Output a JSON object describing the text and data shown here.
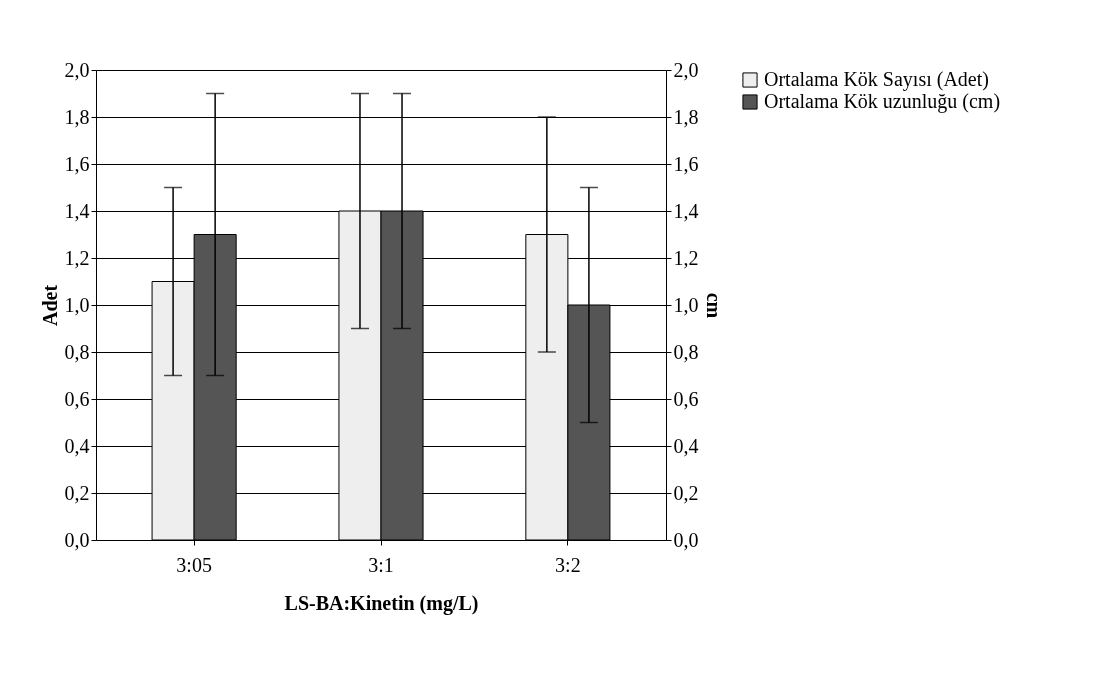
{
  "chart_data": {
    "type": "bar",
    "xlabel": "LS-BA:Kinetin (mg/L)",
    "ylabel": "Adet",
    "y2label": "cm",
    "categories": [
      "3:05",
      "3:1",
      "3:2"
    ],
    "series": [
      {
        "name": "Ortalama Kök Sayısı (Adet)",
        "color": "#eeeeee",
        "values": [
          1.1,
          1.4,
          1.3
        ],
        "errors": [
          [
            0.7,
            1.5
          ],
          [
            0.9,
            1.9
          ],
          [
            0.8,
            1.8
          ]
        ]
      },
      {
        "name": "Ortalama Kök uzunluğu (cm)",
        "color": "#555555",
        "axis": "y2",
        "values": [
          1.3,
          1.4,
          1.0
        ],
        "errors": [
          [
            0.7,
            1.9
          ],
          [
            0.9,
            1.9
          ],
          [
            0.5,
            1.5
          ]
        ]
      }
    ],
    "ylim": [
      0,
      2
    ],
    "yticks": [
      {
        "value": 0,
        "label": "0,0"
      },
      {
        "value": 0.2,
        "label": "0,2"
      },
      {
        "value": 0.4,
        "label": "0,4"
      },
      {
        "value": 0.6,
        "label": "0,6"
      },
      {
        "value": 0.8,
        "label": "0,8"
      },
      {
        "value": 1.0,
        "label": "1,0"
      },
      {
        "value": 1.2,
        "label": "1,2"
      },
      {
        "value": 1.4,
        "label": "1,4"
      },
      {
        "value": 1.6,
        "label": "1,6"
      },
      {
        "value": 1.8,
        "label": "1,8"
      },
      {
        "value": 2.0,
        "label": "2,0"
      }
    ],
    "y2lim": [
      0,
      2
    ],
    "y2ticks": [
      {
        "value": 0,
        "label": "0,0"
      },
      {
        "value": 0.2,
        "label": "0,2"
      },
      {
        "value": 0.4,
        "label": "0,4"
      },
      {
        "value": 0.6,
        "label": "0,6"
      },
      {
        "value": 0.8,
        "label": "0,8"
      },
      {
        "value": 1.0,
        "label": "1,0"
      },
      {
        "value": 1.2,
        "label": "1,2"
      },
      {
        "value": 1.4,
        "label": "1,4"
      },
      {
        "value": 1.6,
        "label": "1,6"
      },
      {
        "value": 1.8,
        "label": "1,8"
      },
      {
        "value": 2.0,
        "label": "2,0"
      }
    ],
    "grid": "y",
    "legend": "right"
  }
}
